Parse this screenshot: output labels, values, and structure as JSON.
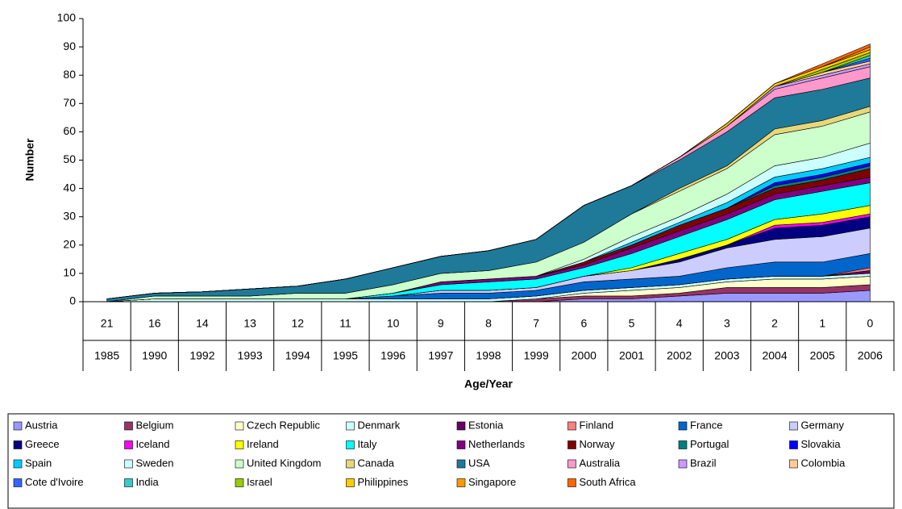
{
  "chart_data": {
    "type": "stacked_area",
    "ylabel": "Number",
    "xlabel": "Age/Year",
    "age_labels": [
      "21",
      "16",
      "14",
      "13",
      "12",
      "11",
      "10",
      "9",
      "8",
      "7",
      "6",
      "5",
      "4",
      "3",
      "2",
      "1",
      "0"
    ],
    "categories": [
      "1985",
      "1990",
      "1992",
      "1993",
      "1994",
      "1995",
      "1996",
      "1997",
      "1998",
      "1999",
      "2000",
      "2001",
      "2002",
      "2003",
      "2004",
      "2005",
      "2006"
    ],
    "ylim": [
      0,
      100
    ],
    "yticks": [
      0,
      10,
      20,
      30,
      40,
      50,
      60,
      70,
      80,
      90,
      100
    ],
    "series": [
      {
        "name": "Austria",
        "color": "#9999ff",
        "values": [
          0,
          0,
          0,
          0,
          0,
          0,
          0,
          0,
          0,
          0,
          1,
          1,
          2,
          3,
          3,
          3,
          4
        ]
      },
      {
        "name": "Belgium",
        "color": "#993366",
        "values": [
          0,
          0,
          0,
          0,
          0,
          0,
          0,
          0,
          0,
          1,
          1,
          1,
          1,
          2,
          2,
          2,
          2
        ]
      },
      {
        "name": "Czech Republic",
        "color": "#ffffcc",
        "values": [
          0,
          0,
          0,
          0,
          0,
          0,
          0,
          0,
          0,
          0,
          1,
          2,
          2,
          2,
          3,
          3,
          3
        ]
      },
      {
        "name": "Denmark",
        "color": "#ccffff",
        "values": [
          0,
          1,
          1,
          1,
          1,
          1,
          1,
          1,
          1,
          1,
          1,
          1,
          1,
          1,
          1,
          1,
          1
        ]
      },
      {
        "name": "Estonia",
        "color": "#660066",
        "values": [
          0,
          0,
          0,
          0,
          0,
          0,
          0,
          0,
          0,
          0,
          0,
          0,
          0,
          0,
          0,
          0,
          1
        ]
      },
      {
        "name": "Finland",
        "color": "#ff8080",
        "values": [
          0,
          0,
          0,
          0,
          0,
          0,
          0,
          0,
          0,
          0,
          0,
          0,
          0,
          0,
          0,
          0,
          1
        ]
      },
      {
        "name": "France",
        "color": "#0066cc",
        "values": [
          0,
          0,
          0,
          0,
          0,
          0,
          1,
          2,
          2,
          2,
          3,
          3,
          3,
          4,
          5,
          5,
          5
        ]
      },
      {
        "name": "Germany",
        "color": "#ccccff",
        "values": [
          0,
          0,
          0,
          0,
          0,
          0,
          0,
          1,
          1,
          1,
          2,
          3,
          5,
          7,
          8,
          9,
          9
        ]
      },
      {
        "name": "Greece",
        "color": "#000080",
        "values": [
          0,
          0,
          0,
          0,
          0,
          0,
          0,
          0,
          0,
          0,
          0,
          0,
          1,
          1,
          4,
          4,
          4
        ]
      },
      {
        "name": "Iceland",
        "color": "#ff00ff",
        "values": [
          0,
          0,
          0,
          0,
          0,
          0,
          0,
          0,
          0,
          0,
          0,
          0,
          0,
          0,
          1,
          1,
          1
        ]
      },
      {
        "name": "Ireland",
        "color": "#ffff00",
        "values": [
          0,
          0,
          0,
          0,
          0,
          0,
          0,
          0,
          0,
          0,
          0,
          1,
          2,
          2,
          2,
          3,
          3
        ]
      },
      {
        "name": "Italy",
        "color": "#00ffff",
        "values": [
          0,
          0,
          0,
          0,
          0,
          0,
          1,
          2,
          3,
          3,
          3,
          5,
          6,
          7,
          7,
          8,
          8
        ]
      },
      {
        "name": "Netherlands",
        "color": "#800080",
        "values": [
          0,
          0,
          0,
          0,
          0,
          0,
          0,
          1,
          1,
          1,
          1,
          2,
          2,
          2,
          2,
          2,
          2
        ]
      },
      {
        "name": "Norway",
        "color": "#800000",
        "values": [
          0,
          0,
          0,
          0,
          0,
          0,
          0,
          0,
          0,
          0,
          1,
          1,
          2,
          2,
          2,
          2,
          3
        ]
      },
      {
        "name": "Portugal",
        "color": "#008080",
        "values": [
          0,
          0,
          0,
          0,
          0,
          0,
          0,
          0,
          0,
          0,
          0,
          0,
          0,
          0,
          1,
          1,
          1
        ]
      },
      {
        "name": "Slovakia",
        "color": "#0000ff",
        "values": [
          0,
          0,
          0,
          0,
          0,
          0,
          0,
          0,
          0,
          0,
          0,
          0,
          0,
          0,
          1,
          1,
          1
        ]
      },
      {
        "name": "Spain",
        "color": "#00ccff",
        "values": [
          0,
          0,
          0,
          0,
          0,
          0,
          0,
          0,
          0,
          0,
          0,
          1,
          1,
          2,
          2,
          2,
          2
        ]
      },
      {
        "name": "Sweden",
        "color": "#ccffff",
        "values": [
          0,
          0,
          0,
          0,
          0,
          0,
          0,
          0,
          0,
          0,
          1,
          2,
          2,
          3,
          4,
          4,
          5
        ]
      },
      {
        "name": "United Kingdom",
        "color": "#ccffcc",
        "values": [
          0,
          1,
          1,
          1,
          2,
          2,
          3,
          3,
          3,
          5,
          6,
          8,
          9,
          9,
          11,
          11,
          11
        ]
      },
      {
        "name": "Canada",
        "color": "#e6d87a",
        "values": [
          0,
          0,
          0,
          0,
          0,
          0,
          0,
          0,
          0,
          0,
          0,
          0,
          1,
          1,
          2,
          2,
          2
        ]
      },
      {
        "name": "USA",
        "color": "#1f7a9a",
        "values": [
          1,
          1,
          1.5,
          2.5,
          2.5,
          5,
          6,
          6,
          7,
          8,
          13,
          10,
          10,
          12,
          11,
          11,
          10
        ]
      },
      {
        "name": "Australia",
        "color": "#ff99cc",
        "values": [
          0,
          0,
          0,
          0,
          0,
          0,
          0,
          0,
          0,
          0,
          0,
          0,
          1,
          2,
          3,
          4,
          4
        ]
      },
      {
        "name": "Brazil",
        "color": "#cc99ff",
        "values": [
          0,
          0,
          0,
          0,
          0,
          0,
          0,
          0,
          0,
          0,
          0,
          0,
          0,
          0,
          1,
          1,
          1
        ]
      },
      {
        "name": "Colombia",
        "color": "#ffcc99",
        "values": [
          0,
          0,
          0,
          0,
          0,
          0,
          0,
          0,
          0,
          0,
          0,
          0,
          0,
          0,
          0,
          1,
          1
        ]
      },
      {
        "name": "Cote d'Ivoire",
        "color": "#3366ff",
        "values": [
          0,
          0,
          0,
          0,
          0,
          0,
          0,
          0,
          0,
          0,
          0,
          0,
          0,
          0,
          0,
          0,
          1
        ]
      },
      {
        "name": "India",
        "color": "#33cccc",
        "values": [
          0,
          0,
          0,
          0,
          0,
          0,
          0,
          0,
          0,
          0,
          0,
          0,
          0,
          0,
          0,
          0,
          1
        ]
      },
      {
        "name": "Israel",
        "color": "#99cc00",
        "values": [
          0,
          0,
          0,
          0,
          0,
          0,
          0,
          0,
          0,
          0,
          0,
          0,
          0,
          0,
          0,
          1,
          1
        ]
      },
      {
        "name": "Philippines",
        "color": "#ffcc00",
        "values": [
          0,
          0,
          0,
          0,
          0,
          0,
          0,
          0,
          0,
          0,
          0,
          0,
          0,
          1,
          1,
          1,
          1
        ]
      },
      {
        "name": "Singapore",
        "color": "#ff9900",
        "values": [
          0,
          0,
          0,
          0,
          0,
          0,
          0,
          0,
          0,
          0,
          0,
          0,
          0,
          0,
          0,
          0,
          1
        ]
      },
      {
        "name": "South Africa",
        "color": "#ff6600",
        "values": [
          0,
          0,
          0,
          0,
          0,
          0,
          0,
          0,
          0,
          0,
          0,
          0,
          0,
          0,
          0,
          1,
          1
        ]
      }
    ]
  }
}
